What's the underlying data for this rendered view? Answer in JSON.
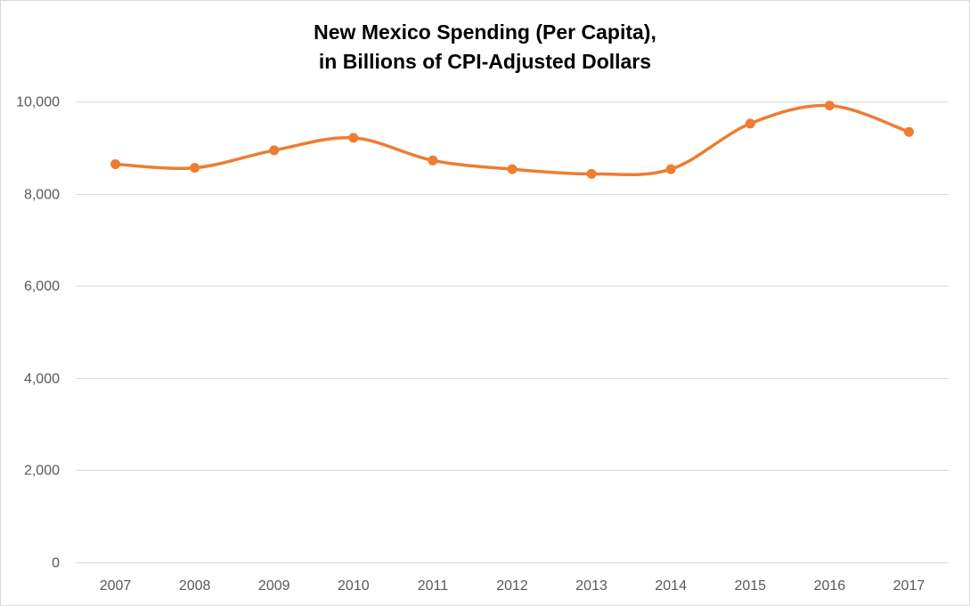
{
  "chart_data": {
    "type": "line",
    "title": "New Mexico Spending (Per Capita),",
    "subtitle": "in Billions of CPI-Adjusted Dollars",
    "categories": [
      "2007",
      "2008",
      "2009",
      "2010",
      "2011",
      "2012",
      "2013",
      "2014",
      "2015",
      "2016",
      "2017"
    ],
    "series": [
      {
        "values": [
          8640,
          8560,
          8940,
          9210,
          8720,
          8530,
          8430,
          8530,
          9520,
          9910,
          9340
        ],
        "color": "#ed7d31"
      }
    ],
    "ylim": [
      0,
      10000
    ],
    "yticks": [
      0,
      2000,
      4000,
      6000,
      8000,
      10000
    ],
    "ytick_labels": [
      "0",
      "2,000",
      "4,000",
      "6,000",
      "8,000",
      "10,000"
    ],
    "xlabel": "",
    "ylabel": "",
    "grid": true,
    "gridline_color": "#d9d9d9",
    "legend": "none",
    "smoothed": true
  }
}
